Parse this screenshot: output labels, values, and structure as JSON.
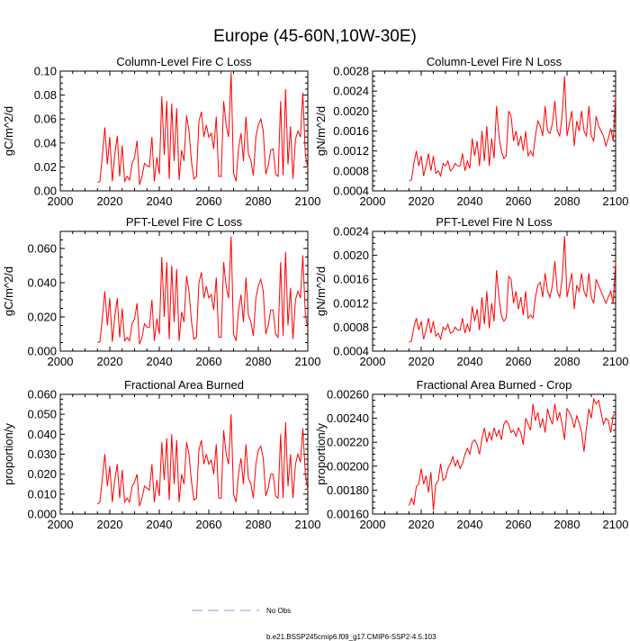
{
  "main_title": "Europe (45-60N,10W-30E)",
  "legend": [
    {
      "label": "No Obs",
      "style": "dashed",
      "color": "#9999cc"
    },
    {
      "label": "b.e21.BSSP245cmip6.f09_g17.CMIP6-SSP2-4.5.103",
      "style": "solid",
      "color": "#ff0000"
    }
  ],
  "chart_data": [
    {
      "type": "line",
      "title": "Column-Level Fire C Loss",
      "ylabel": "gC/m^2/d",
      "xlabel": "",
      "xlim": [
        2000,
        2100
      ],
      "ylim": [
        0,
        0.1
      ],
      "xticks": [
        "2000",
        "2020",
        "2040",
        "2060",
        "2080",
        "2100"
      ],
      "yticks": [
        {
          "v": 0,
          "l": "0.00"
        },
        {
          "v": 0.02,
          "l": "0.02"
        },
        {
          "v": 0.04,
          "l": "0.04"
        },
        {
          "v": 0.06,
          "l": "0.06"
        },
        {
          "v": 0.08,
          "l": "0.08"
        },
        {
          "v": 0.1,
          "l": "0.10"
        }
      ],
      "series": [
        {
          "name": "b.e21.BSSP245cmip6.f09_g17.CMIP6-SSP2-4.5.103",
          "x0": 2015,
          "values": [
            0.007,
            0.008,
            0.03,
            0.053,
            0.022,
            0.045,
            0.008,
            0.03,
            0.046,
            0.012,
            0.038,
            0.008,
            0.012,
            0.009,
            0.023,
            0.028,
            0.042,
            0.005,
            0.012,
            0.023,
            0.021,
            0.02,
            0.045,
            0.008,
            0.028,
            0.014,
            0.079,
            0.03,
            0.075,
            0.01,
            0.073,
            0.025,
            0.069,
            0.009,
            0.034,
            0.025,
            0.063,
            0.05,
            0.024,
            0.01,
            0.012,
            0.058,
            0.066,
            0.045,
            0.055,
            0.045,
            0.048,
            0.035,
            0.062,
            0.012,
            0.012,
            0.075,
            0.055,
            0.045,
            0.099,
            0.015,
            0.008,
            0.035,
            0.048,
            0.025,
            0.062,
            0.031,
            0.025,
            0.013,
            0.045,
            0.055,
            0.06,
            0.05,
            0.014,
            0.021,
            0.034,
            0.035,
            0.014,
            0.012,
            0.075,
            0.013,
            0.085,
            0.022,
            0.054,
            0.01,
            0.043,
            0.05,
            0.045,
            0.082,
            0.03,
            0.019
          ]
        }
      ]
    },
    {
      "type": "line",
      "title": "Column-Level Fire N Loss",
      "ylabel": "gN/m^2/d",
      "xlabel": "",
      "xlim": [
        2000,
        2100
      ],
      "ylim": [
        0.0004,
        0.0028
      ],
      "xticks": [
        "2000",
        "2020",
        "2040",
        "2060",
        "2080",
        "2100"
      ],
      "yticks": [
        {
          "v": 0.0004,
          "l": "0.0004"
        },
        {
          "v": 0.0008,
          "l": "0.0008"
        },
        {
          "v": 0.0012,
          "l": "0.0012"
        },
        {
          "v": 0.0016,
          "l": "0.0016"
        },
        {
          "v": 0.002,
          "l": "0.0020"
        },
        {
          "v": 0.0024,
          "l": "0.0024"
        },
        {
          "v": 0.0028,
          "l": "0.0028"
        }
      ],
      "series": [
        {
          "name": "b.e21.BSSP245cmip6.f09_g17.CMIP6-SSP2-4.5.103",
          "x0": 2015,
          "values": [
            0.0006,
            0.00062,
            0.00095,
            0.0012,
            0.0009,
            0.0011,
            0.0007,
            0.0009,
            0.00115,
            0.0008,
            0.0011,
            0.00075,
            0.0008,
            0.0007,
            0.00095,
            0.0009,
            0.001,
            0.0008,
            0.00085,
            0.00095,
            0.0009,
            0.0009,
            0.00115,
            0.0008,
            0.001,
            0.00085,
            0.00145,
            0.0011,
            0.0014,
            0.0009,
            0.0016,
            0.001,
            0.0017,
            0.0009,
            0.00145,
            0.00105,
            0.0021,
            0.0015,
            0.0012,
            0.00105,
            0.0011,
            0.002,
            0.0019,
            0.0014,
            0.0016,
            0.0013,
            0.0015,
            0.0012,
            0.0016,
            0.0011,
            0.0012,
            0.0011,
            0.0015,
            0.0018,
            0.0017,
            0.0015,
            0.0021,
            0.0016,
            0.00155,
            0.00175,
            0.0022,
            0.0016,
            0.0015,
            0.0019,
            0.0027,
            0.0015,
            0.00175,
            0.002,
            0.0013,
            0.0018,
            0.0016,
            0.002,
            0.0016,
            0.0015,
            0.0021,
            0.0015,
            0.0014,
            0.0019,
            0.0017,
            0.0016,
            0.0015,
            0.0013,
            0.00145,
            0.00165,
            0.0014,
            0.0023
          ]
        }
      ]
    },
    {
      "type": "line",
      "title": "PFT-Level Fire C Loss",
      "ylabel": "gC/m^2/d",
      "xlabel": "",
      "xlim": [
        2000,
        2100
      ],
      "ylim": [
        0,
        0.07
      ],
      "xticks": [
        "2000",
        "2020",
        "2040",
        "2060",
        "2080",
        "2100"
      ],
      "yticks": [
        {
          "v": 0,
          "l": "0.000"
        },
        {
          "v": 0.02,
          "l": "0.020"
        },
        {
          "v": 0.04,
          "l": "0.040"
        },
        {
          "v": 0.06,
          "l": "0.060"
        }
      ],
      "series": [
        {
          "name": "b.e21.BSSP245cmip6.f09_g17.CMIP6-SSP2-4.5.103",
          "x0": 2015,
          "values": [
            0.005,
            0.0055,
            0.02,
            0.035,
            0.015,
            0.031,
            0.0055,
            0.02,
            0.031,
            0.008,
            0.025,
            0.006,
            0.008,
            0.006,
            0.016,
            0.019,
            0.028,
            0.004,
            0.008,
            0.016,
            0.014,
            0.014,
            0.03,
            0.006,
            0.019,
            0.01,
            0.055,
            0.02,
            0.052,
            0.007,
            0.05,
            0.017,
            0.048,
            0.006,
            0.023,
            0.017,
            0.044,
            0.035,
            0.017,
            0.007,
            0.008,
            0.04,
            0.046,
            0.031,
            0.038,
            0.031,
            0.033,
            0.024,
            0.043,
            0.008,
            0.008,
            0.052,
            0.038,
            0.031,
            0.067,
            0.01,
            0.006,
            0.024,
            0.033,
            0.017,
            0.043,
            0.021,
            0.017,
            0.009,
            0.031,
            0.038,
            0.042,
            0.035,
            0.01,
            0.015,
            0.024,
            0.024,
            0.01,
            0.008,
            0.052,
            0.009,
            0.058,
            0.015,
            0.037,
            0.007,
            0.03,
            0.035,
            0.031,
            0.056,
            0.021,
            0.013
          ]
        }
      ]
    },
    {
      "type": "line",
      "title": "PFT-Level Fire N Loss",
      "ylabel": "gN/m^2/d",
      "xlabel": "",
      "xlim": [
        2000,
        2100
      ],
      "ylim": [
        0.0004,
        0.0024
      ],
      "xticks": [
        "2000",
        "2020",
        "2040",
        "2060",
        "2080",
        "2100"
      ],
      "yticks": [
        {
          "v": 0.0004,
          "l": "0.0004"
        },
        {
          "v": 0.0008,
          "l": "0.0008"
        },
        {
          "v": 0.0012,
          "l": "0.0012"
        },
        {
          "v": 0.0016,
          "l": "0.0016"
        },
        {
          "v": 0.002,
          "l": "0.0020"
        },
        {
          "v": 0.0024,
          "l": "0.0024"
        }
      ],
      "series": [
        {
          "name": "b.e21.BSSP245cmip6.f09_g17.CMIP6-SSP2-4.5.103",
          "x0": 2015,
          "values": [
            0.00055,
            0.00057,
            0.0008,
            0.00095,
            0.00075,
            0.0009,
            0.0006,
            0.00075,
            0.00095,
            0.0007,
            0.0009,
            0.00065,
            0.0007,
            0.0006,
            0.0008,
            0.00075,
            0.00085,
            0.0007,
            0.00072,
            0.0008,
            0.00075,
            0.00075,
            0.00095,
            0.0007,
            0.00085,
            0.00072,
            0.00115,
            0.0009,
            0.0011,
            0.00075,
            0.0013,
            0.00085,
            0.0014,
            0.00078,
            0.0012,
            0.0009,
            0.00175,
            0.0013,
            0.001,
            0.0009,
            0.00095,
            0.00165,
            0.0016,
            0.0012,
            0.0014,
            0.0011,
            0.0013,
            0.001,
            0.0014,
            0.00095,
            0.001,
            0.00095,
            0.0013,
            0.0015,
            0.00155,
            0.0013,
            0.0017,
            0.0014,
            0.0013,
            0.0015,
            0.0019,
            0.0014,
            0.0013,
            0.0016,
            0.00232,
            0.0013,
            0.0015,
            0.0017,
            0.0011,
            0.0015,
            0.0014,
            0.0017,
            0.0014,
            0.0013,
            0.0017,
            0.0013,
            0.0012,
            0.0016,
            0.0015,
            0.0014,
            0.0013,
            0.0012,
            0.0013,
            0.0014,
            0.0012,
            0.0019
          ]
        }
      ]
    },
    {
      "type": "line",
      "title": "Fractional Area Burned",
      "ylabel": "proportion/y",
      "xlabel": "",
      "xlim": [
        2000,
        2100
      ],
      "ylim": [
        0,
        0.06
      ],
      "xticks": [
        "2000",
        "2020",
        "2040",
        "2060",
        "2080",
        "2100"
      ],
      "yticks": [
        {
          "v": 0,
          "l": "0.000"
        },
        {
          "v": 0.01,
          "l": "0.010"
        },
        {
          "v": 0.02,
          "l": "0.020"
        },
        {
          "v": 0.03,
          "l": "0.030"
        },
        {
          "v": 0.04,
          "l": "0.040"
        },
        {
          "v": 0.05,
          "l": "0.050"
        },
        {
          "v": 0.06,
          "l": "0.060"
        }
      ],
      "series": [
        {
          "name": "b.e21.BSSP245cmip6.f09_g17.CMIP6-SSP2-4.5.103",
          "x0": 2015,
          "values": [
            0.005,
            0.006,
            0.018,
            0.03,
            0.014,
            0.024,
            0.006,
            0.017,
            0.025,
            0.008,
            0.022,
            0.006,
            0.008,
            0.006,
            0.014,
            0.016,
            0.02,
            0.004,
            0.008,
            0.014,
            0.013,
            0.012,
            0.025,
            0.006,
            0.017,
            0.009,
            0.036,
            0.017,
            0.038,
            0.007,
            0.04,
            0.015,
            0.037,
            0.006,
            0.02,
            0.015,
            0.036,
            0.03,
            0.016,
            0.007,
            0.008,
            0.032,
            0.037,
            0.025,
            0.03,
            0.025,
            0.027,
            0.02,
            0.035,
            0.008,
            0.008,
            0.042,
            0.03,
            0.025,
            0.05,
            0.01,
            0.006,
            0.02,
            0.028,
            0.015,
            0.035,
            0.018,
            0.015,
            0.008,
            0.025,
            0.032,
            0.034,
            0.028,
            0.009,
            0.013,
            0.02,
            0.02,
            0.009,
            0.008,
            0.04,
            0.008,
            0.046,
            0.014,
            0.03,
            0.008,
            0.025,
            0.03,
            0.026,
            0.043,
            0.02,
            0.012
          ]
        }
      ]
    },
    {
      "type": "line",
      "title": "Fractional Area Burned - Crop",
      "ylabel": "proportion/y",
      "xlabel": "",
      "xlim": [
        2000,
        2100
      ],
      "ylim": [
        0.0016,
        0.0026
      ],
      "xticks": [
        "2000",
        "2020",
        "2040",
        "2060",
        "2080",
        "2100"
      ],
      "yticks": [
        {
          "v": 0.0016,
          "l": "0.00160"
        },
        {
          "v": 0.0018,
          "l": "0.00180"
        },
        {
          "v": 0.002,
          "l": "0.00200"
        },
        {
          "v": 0.0022,
          "l": "0.00220"
        },
        {
          "v": 0.0024,
          "l": "0.00240"
        },
        {
          "v": 0.0026,
          "l": "0.00260"
        }
      ],
      "series": [
        {
          "name": "b.e21.BSSP245cmip6.f09_g17.CMIP6-SSP2-4.5.103",
          "x0": 2015,
          "values": [
            0.00167,
            0.00173,
            0.00168,
            0.00183,
            0.00185,
            0.00198,
            0.00185,
            0.00192,
            0.00178,
            0.00195,
            0.00163,
            0.00185,
            0.00188,
            0.00202,
            0.00188,
            0.0019,
            0.00198,
            0.00202,
            0.00208,
            0.002,
            0.00205,
            0.00198,
            0.00202,
            0.0021,
            0.00215,
            0.0021,
            0.0022,
            0.00222,
            0.00218,
            0.0021,
            0.00223,
            0.00232,
            0.0022,
            0.00228,
            0.00222,
            0.00232,
            0.00225,
            0.0023,
            0.00222,
            0.00235,
            0.00238,
            0.00235,
            0.00228,
            0.0023,
            0.00225,
            0.00232,
            0.00228,
            0.00218,
            0.0024,
            0.00235,
            0.0023,
            0.00252,
            0.00238,
            0.00245,
            0.00232,
            0.0024,
            0.00228,
            0.00248,
            0.0024,
            0.00235,
            0.00252,
            0.00238,
            0.00245,
            0.00235,
            0.00222,
            0.00248,
            0.00245,
            0.0024,
            0.00232,
            0.00242,
            0.00236,
            0.00228,
            0.00212,
            0.00232,
            0.00248,
            0.0024,
            0.00256,
            0.00252,
            0.00255,
            0.00245,
            0.00235,
            0.0024,
            0.00238,
            0.00228,
            0.00242,
            0.00244
          ]
        }
      ]
    }
  ]
}
